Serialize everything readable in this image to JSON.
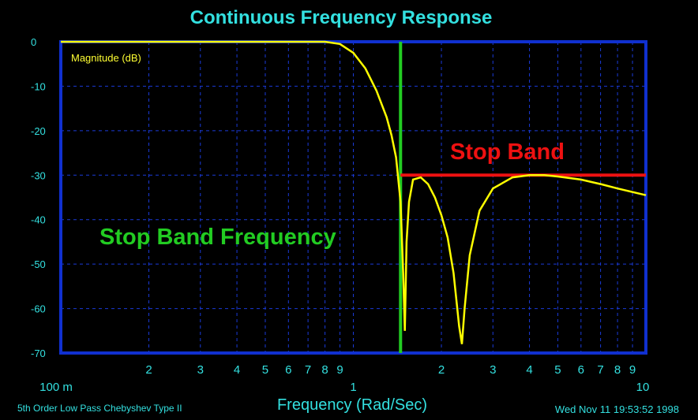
{
  "chart_data": {
    "type": "line",
    "title": "Continuous Frequency Response",
    "xlabel": "Frequency (Rad/Sec)",
    "ylabel": "Magnitude (dB)",
    "x_scale": "log",
    "xlim": [
      0.1,
      10
    ],
    "ylim": [
      -70,
      0
    ],
    "y_ticks": [
      "0",
      "-10",
      "-20",
      "-30",
      "-40",
      "-50",
      "-60",
      "-70"
    ],
    "x_decade_labels": [
      "100 m",
      "1",
      "10"
    ],
    "x_minor_labels": [
      "2",
      "3",
      "4",
      "5",
      "6",
      "7",
      "8",
      "9"
    ],
    "grid": true,
    "series": [
      {
        "color": "#ffff00",
        "x": [
          0.1,
          0.2,
          0.4,
          0.6,
          0.8,
          0.9,
          1.0,
          1.1,
          1.2,
          1.3,
          1.35,
          1.4,
          1.45,
          1.48,
          1.5,
          1.52,
          1.55,
          1.6,
          1.7,
          1.8,
          1.9,
          2.0,
          2.1,
          2.2,
          2.3,
          2.35,
          2.4,
          2.5,
          2.7,
          3.0,
          3.5,
          4.0,
          4.5,
          5.0,
          6.0,
          7.0,
          8.0,
          10.0
        ],
        "y": [
          0,
          0,
          0,
          0,
          0,
          -0.5,
          -2.5,
          -6,
          -11,
          -17,
          -21,
          -26,
          -36,
          -52,
          -65,
          -45,
          -36,
          -31,
          -30.5,
          -32,
          -35,
          -39,
          -44,
          -52,
          -64,
          -68,
          -60,
          -48,
          -38,
          -33,
          -30.5,
          -30,
          -30,
          -30.3,
          -31,
          -32,
          -33,
          -34.5
        ]
      }
    ],
    "annotations": [
      {
        "text": "Stop Band Frequency",
        "color": "#22cc22",
        "type": "vertical-line",
        "x": 1.45
      },
      {
        "text": "Stop Band",
        "color": "#ee1111",
        "type": "horizontal-line",
        "y": -30,
        "x_from": 1.45,
        "x_to": 10
      }
    ]
  },
  "footer": {
    "filter_desc": "5th Order Low Pass Chebyshev Type II",
    "timestamp": "Wed Nov 11 19:53:52 1998"
  },
  "colors": {
    "background": "#000000",
    "title": "#33e0e0",
    "axis": "#1030d0",
    "grid": "#1a3ad8",
    "curve": "#ffff00",
    "stopband_freq": "#22cc22",
    "stopband": "#ee1111",
    "labels": "#33e0e0"
  }
}
